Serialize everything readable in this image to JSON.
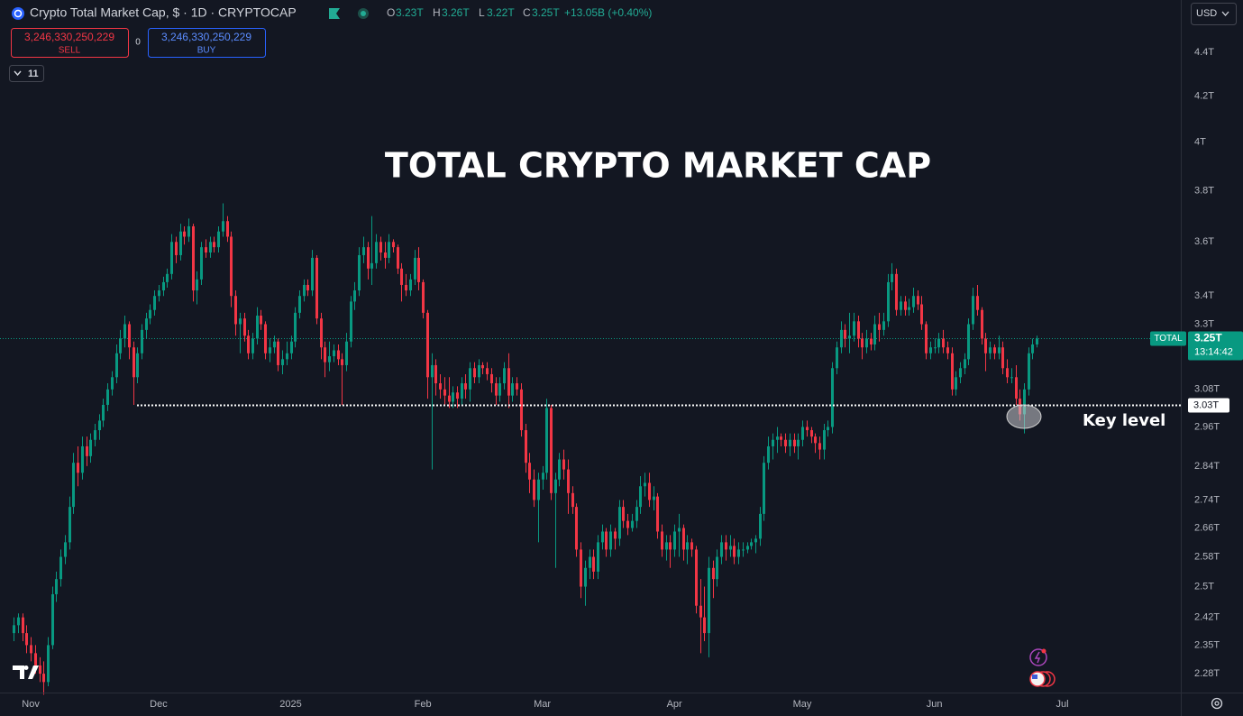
{
  "header": {
    "symbol_title": "Crypto Total Market Cap, $ · 1D · CRYPTOCAP",
    "ohlc": [
      {
        "label": "O",
        "value": "3.23T"
      },
      {
        "label": "H",
        "value": "3.26T"
      },
      {
        "label": "L",
        "value": "3.22T"
      },
      {
        "label": "C",
        "value": "3.25T"
      }
    ],
    "change": "+13.05B (+0.40%)"
  },
  "trade": {
    "sell_price": "3,246,330,250,229",
    "sell_label": "SELL",
    "spread": 0,
    "buy_price": "3,246,330,250,229",
    "buy_label": "BUY"
  },
  "indicators_count": 11,
  "currency": "USD",
  "chart_data": {
    "type": "candlestick",
    "title": "TOTAL CRYPTO MARKET CAP",
    "up_color": "#089981",
    "down_color": "#f23645",
    "log_scale": true,
    "xlim": [
      -3.2,
      273.8
    ],
    "ylim": [
      2.235,
      4.65
    ],
    "xticks": [
      {
        "value": 4,
        "label": "Nov"
      },
      {
        "value": 34,
        "label": "Dec"
      },
      {
        "value": 65,
        "label": "2025"
      },
      {
        "value": 96,
        "label": "Feb"
      },
      {
        "value": 124,
        "label": "Mar"
      },
      {
        "value": 155,
        "label": "Apr"
      },
      {
        "value": 185,
        "label": "May"
      },
      {
        "value": 216,
        "label": "Jun"
      },
      {
        "value": 246,
        "label": "Jul"
      }
    ],
    "yticks": [
      {
        "value": 4.4,
        "label": "4.4T"
      },
      {
        "value": 4.2,
        "label": "4.2T"
      },
      {
        "value": 4,
        "label": "4T"
      },
      {
        "value": 3.8,
        "label": "3.8T"
      },
      {
        "value": 3.6,
        "label": "3.6T"
      },
      {
        "value": 3.4,
        "label": "3.4T"
      },
      {
        "value": 3.3,
        "label": "3.3T"
      },
      {
        "value": 3.08,
        "label": "3.08T"
      },
      {
        "value": 2.96,
        "label": "2.96T"
      },
      {
        "value": 2.84,
        "label": "2.84T"
      },
      {
        "value": 2.74,
        "label": "2.74T"
      },
      {
        "value": 2.66,
        "label": "2.66T"
      },
      {
        "value": 2.58,
        "label": "2.58T"
      },
      {
        "value": 2.5,
        "label": "2.5T"
      },
      {
        "value": 2.42,
        "label": "2.42T"
      },
      {
        "value": 2.35,
        "label": "2.35T"
      },
      {
        "value": 2.28,
        "label": "2.28T"
      }
    ],
    "key_level": {
      "value": 3.03,
      "label": "3.03T"
    },
    "key_level_annotation": "Key level",
    "last_price": {
      "value": 3.25,
      "label": "3.25T"
    },
    "symbol_label": "TOTAL",
    "countdown": "13:14:42",
    "ohlc": [
      [
        2.38,
        2.42,
        2.36,
        2.4
      ],
      [
        2.4,
        2.43,
        2.38,
        2.42
      ],
      [
        2.42,
        2.43,
        2.36,
        2.38
      ],
      [
        2.38,
        2.4,
        2.33,
        2.35
      ],
      [
        2.35,
        2.37,
        2.31,
        2.33
      ],
      [
        2.33,
        2.35,
        2.28,
        2.3
      ],
      [
        2.3,
        2.32,
        2.26,
        2.28
      ],
      [
        2.28,
        2.31,
        2.23,
        2.26
      ],
      [
        2.26,
        2.37,
        2.25,
        2.35
      ],
      [
        2.35,
        2.5,
        2.34,
        2.48
      ],
      [
        2.48,
        2.54,
        2.46,
        2.52
      ],
      [
        2.52,
        2.6,
        2.5,
        2.58
      ],
      [
        2.58,
        2.64,
        2.56,
        2.62
      ],
      [
        2.62,
        2.75,
        2.6,
        2.72
      ],
      [
        2.72,
        2.88,
        2.7,
        2.85
      ],
      [
        2.85,
        2.9,
        2.78,
        2.82
      ],
      [
        2.82,
        2.93,
        2.8,
        2.9
      ],
      [
        2.9,
        2.93,
        2.84,
        2.87
      ],
      [
        2.87,
        2.94,
        2.85,
        2.92
      ],
      [
        2.92,
        2.97,
        2.9,
        2.95
      ],
      [
        2.95,
        3.0,
        2.92,
        2.98
      ],
      [
        2.98,
        3.05,
        2.96,
        3.03
      ],
      [
        3.03,
        3.1,
        3.01,
        3.08
      ],
      [
        3.08,
        3.14,
        3.06,
        3.12
      ],
      [
        3.12,
        3.23,
        3.1,
        3.2
      ],
      [
        3.2,
        3.28,
        3.18,
        3.25
      ],
      [
        3.25,
        3.33,
        3.22,
        3.3
      ],
      [
        3.3,
        3.31,
        3.18,
        3.22
      ],
      [
        3.22,
        3.24,
        3.03,
        3.12
      ],
      [
        3.12,
        3.22,
        3.1,
        3.2
      ],
      [
        3.2,
        3.3,
        3.18,
        3.28
      ],
      [
        3.28,
        3.34,
        3.25,
        3.32
      ],
      [
        3.32,
        3.37,
        3.3,
        3.35
      ],
      [
        3.35,
        3.42,
        3.33,
        3.4
      ],
      [
        3.4,
        3.44,
        3.38,
        3.42
      ],
      [
        3.42,
        3.47,
        3.4,
        3.45
      ],
      [
        3.45,
        3.5,
        3.43,
        3.48
      ],
      [
        3.48,
        3.63,
        3.46,
        3.6
      ],
      [
        3.6,
        3.62,
        3.52,
        3.55
      ],
      [
        3.55,
        3.67,
        3.53,
        3.64
      ],
      [
        3.64,
        3.66,
        3.59,
        3.62
      ],
      [
        3.62,
        3.69,
        3.6,
        3.66
      ],
      [
        3.66,
        3.67,
        3.38,
        3.42
      ],
      [
        3.42,
        3.49,
        3.37,
        3.46
      ],
      [
        3.46,
        3.6,
        3.44,
        3.58
      ],
      [
        3.58,
        3.61,
        3.54,
        3.56
      ],
      [
        3.56,
        3.62,
        3.54,
        3.6
      ],
      [
        3.6,
        3.62,
        3.56,
        3.58
      ],
      [
        3.58,
        3.66,
        3.56,
        3.64
      ],
      [
        3.64,
        3.75,
        3.62,
        3.68
      ],
      [
        3.68,
        3.7,
        3.6,
        3.62
      ],
      [
        3.62,
        3.64,
        3.36,
        3.4
      ],
      [
        3.4,
        3.42,
        3.26,
        3.3
      ],
      [
        3.3,
        3.34,
        3.2,
        3.32
      ],
      [
        3.32,
        3.34,
        3.24,
        3.26
      ],
      [
        3.26,
        3.28,
        3.18,
        3.2
      ],
      [
        3.2,
        3.27,
        3.18,
        3.25
      ],
      [
        3.25,
        3.36,
        3.23,
        3.33
      ],
      [
        3.33,
        3.35,
        3.28,
        3.3
      ],
      [
        3.3,
        3.31,
        3.18,
        3.2
      ],
      [
        3.2,
        3.25,
        3.17,
        3.22
      ],
      [
        3.22,
        3.26,
        3.2,
        3.24
      ],
      [
        3.24,
        3.25,
        3.14,
        3.16
      ],
      [
        3.16,
        3.21,
        3.13,
        3.18
      ],
      [
        3.18,
        3.24,
        3.16,
        3.2
      ],
      [
        3.2,
        3.26,
        3.18,
        3.24
      ],
      [
        3.24,
        3.36,
        3.22,
        3.34
      ],
      [
        3.34,
        3.42,
        3.32,
        3.4
      ],
      [
        3.4,
        3.46,
        3.38,
        3.44
      ],
      [
        3.44,
        3.46,
        3.4,
        3.42
      ],
      [
        3.42,
        3.57,
        3.4,
        3.54
      ],
      [
        3.54,
        3.55,
        3.3,
        3.32
      ],
      [
        3.32,
        3.34,
        3.18,
        3.22
      ],
      [
        3.22,
        3.24,
        3.12,
        3.17
      ],
      [
        3.17,
        3.24,
        3.14,
        3.19
      ],
      [
        3.19,
        3.23,
        3.17,
        3.21
      ],
      [
        3.21,
        3.23,
        3.16,
        3.18
      ],
      [
        3.18,
        3.2,
        3.03,
        3.16
      ],
      [
        3.16,
        3.27,
        3.14,
        3.24
      ],
      [
        3.24,
        3.4,
        3.22,
        3.38
      ],
      [
        3.38,
        3.45,
        3.35,
        3.42
      ],
      [
        3.42,
        3.58,
        3.4,
        3.55
      ],
      [
        3.55,
        3.62,
        3.52,
        3.58
      ],
      [
        3.58,
        3.6,
        3.46,
        3.5
      ],
      [
        3.5,
        3.7,
        3.44,
        3.52
      ],
      [
        3.52,
        3.63,
        3.5,
        3.6
      ],
      [
        3.6,
        3.62,
        3.53,
        3.56
      ],
      [
        3.56,
        3.6,
        3.5,
        3.54
      ],
      [
        3.54,
        3.63,
        3.52,
        3.6
      ],
      [
        3.6,
        3.61,
        3.56,
        3.58
      ],
      [
        3.58,
        3.59,
        3.48,
        3.5
      ],
      [
        3.5,
        3.52,
        3.38,
        3.44
      ],
      [
        3.44,
        3.48,
        3.4,
        3.42
      ],
      [
        3.42,
        3.48,
        3.4,
        3.46
      ],
      [
        3.46,
        3.57,
        3.44,
        3.54
      ],
      [
        3.54,
        3.58,
        3.42,
        3.45
      ],
      [
        3.45,
        3.46,
        3.32,
        3.34
      ],
      [
        3.34,
        3.35,
        3.05,
        3.12
      ],
      [
        3.12,
        3.2,
        2.83,
        3.16
      ],
      [
        3.16,
        3.18,
        3.06,
        3.1
      ],
      [
        3.1,
        3.13,
        3.05,
        3.08
      ],
      [
        3.08,
        3.12,
        3.03,
        3.06
      ],
      [
        3.06,
        3.12,
        3.02,
        3.04
      ],
      [
        3.04,
        3.09,
        3.02,
        3.07
      ],
      [
        3.07,
        3.09,
        3.02,
        3.05
      ],
      [
        3.05,
        3.12,
        3.03,
        3.1
      ],
      [
        3.1,
        3.13,
        3.05,
        3.08
      ],
      [
        3.08,
        3.17,
        3.04,
        3.15
      ],
      [
        3.15,
        3.17,
        3.1,
        3.12
      ],
      [
        3.12,
        3.18,
        3.1,
        3.16
      ],
      [
        3.16,
        3.17,
        3.13,
        3.15
      ],
      [
        3.15,
        3.17,
        3.11,
        3.13
      ],
      [
        3.13,
        3.15,
        3.07,
        3.1
      ],
      [
        3.1,
        3.12,
        3.03,
        3.06
      ],
      [
        3.06,
        3.12,
        3.04,
        3.1
      ],
      [
        3.1,
        3.17,
        3.08,
        3.15
      ],
      [
        3.15,
        3.2,
        3.02,
        3.06
      ],
      [
        3.06,
        3.12,
        3.04,
        3.1
      ],
      [
        3.1,
        3.12,
        3.06,
        3.08
      ],
      [
        3.08,
        3.1,
        2.93,
        2.95
      ],
      [
        2.95,
        2.97,
        2.82,
        2.85
      ],
      [
        2.85,
        2.88,
        2.76,
        2.8
      ],
      [
        2.8,
        2.83,
        2.72,
        2.74
      ],
      [
        2.74,
        2.82,
        2.62,
        2.8
      ],
      [
        2.8,
        2.84,
        2.77,
        2.82
      ],
      [
        2.82,
        3.05,
        2.8,
        3.02
      ],
      [
        3.02,
        3.03,
        2.74,
        2.76
      ],
      [
        2.76,
        2.82,
        2.55,
        2.8
      ],
      [
        2.8,
        2.88,
        2.78,
        2.86
      ],
      [
        2.86,
        2.89,
        2.8,
        2.83
      ],
      [
        2.83,
        2.86,
        2.7,
        2.76
      ],
      [
        2.76,
        2.78,
        2.7,
        2.72
      ],
      [
        2.72,
        2.73,
        2.58,
        2.6
      ],
      [
        2.6,
        2.62,
        2.47,
        2.5
      ],
      [
        2.5,
        2.57,
        2.45,
        2.55
      ],
      [
        2.55,
        2.6,
        2.52,
        2.58
      ],
      [
        2.58,
        2.6,
        2.52,
        2.54
      ],
      [
        2.54,
        2.64,
        2.52,
        2.62
      ],
      [
        2.62,
        2.67,
        2.6,
        2.65
      ],
      [
        2.65,
        2.66,
        2.58,
        2.6
      ],
      [
        2.6,
        2.67,
        2.58,
        2.65
      ],
      [
        2.65,
        2.66,
        2.6,
        2.63
      ],
      [
        2.63,
        2.74,
        2.61,
        2.72
      ],
      [
        2.72,
        2.74,
        2.66,
        2.68
      ],
      [
        2.68,
        2.7,
        2.64,
        2.66
      ],
      [
        2.66,
        2.7,
        2.65,
        2.68
      ],
      [
        2.68,
        2.74,
        2.66,
        2.72
      ],
      [
        2.72,
        2.81,
        2.7,
        2.78
      ],
      [
        2.78,
        2.82,
        2.75,
        2.79
      ],
      [
        2.79,
        2.82,
        2.72,
        2.74
      ],
      [
        2.74,
        2.78,
        2.71,
        2.75
      ],
      [
        2.75,
        2.76,
        2.63,
        2.65
      ],
      [
        2.65,
        2.67,
        2.58,
        2.6
      ],
      [
        2.6,
        2.64,
        2.57,
        2.62
      ],
      [
        2.62,
        2.64,
        2.55,
        2.6
      ],
      [
        2.6,
        2.67,
        2.58,
        2.65
      ],
      [
        2.65,
        2.7,
        2.58,
        2.66
      ],
      [
        2.66,
        2.67,
        2.57,
        2.6
      ],
      [
        2.6,
        2.64,
        2.56,
        2.62
      ],
      [
        2.62,
        2.63,
        2.58,
        2.6
      ],
      [
        2.6,
        2.61,
        2.43,
        2.45
      ],
      [
        2.45,
        2.52,
        2.33,
        2.42
      ],
      [
        2.42,
        2.5,
        2.36,
        2.38
      ],
      [
        2.38,
        2.58,
        2.32,
        2.55
      ],
      [
        2.55,
        2.57,
        2.47,
        2.52
      ],
      [
        2.52,
        2.6,
        2.5,
        2.58
      ],
      [
        2.58,
        2.64,
        2.56,
        2.62
      ],
      [
        2.62,
        2.64,
        2.57,
        2.6
      ],
      [
        2.6,
        2.64,
        2.58,
        2.61
      ],
      [
        2.61,
        2.63,
        2.56,
        2.58
      ],
      [
        2.58,
        2.62,
        2.56,
        2.6
      ],
      [
        2.6,
        2.62,
        2.58,
        2.6
      ],
      [
        2.6,
        2.62,
        2.59,
        2.61
      ],
      [
        2.61,
        2.63,
        2.6,
        2.62
      ],
      [
        2.62,
        2.64,
        2.59,
        2.63
      ],
      [
        2.63,
        2.72,
        2.61,
        2.7
      ],
      [
        2.7,
        2.87,
        2.68,
        2.85
      ],
      [
        2.85,
        2.93,
        2.83,
        2.9
      ],
      [
        2.9,
        2.94,
        2.86,
        2.92
      ],
      [
        2.92,
        2.96,
        2.88,
        2.93
      ],
      [
        2.93,
        2.94,
        2.9,
        2.92
      ],
      [
        2.92,
        2.94,
        2.88,
        2.9
      ],
      [
        2.9,
        2.94,
        2.87,
        2.92
      ],
      [
        2.92,
        2.94,
        2.88,
        2.9
      ],
      [
        2.9,
        2.94,
        2.86,
        2.92
      ],
      [
        2.92,
        2.98,
        2.9,
        2.96
      ],
      [
        2.96,
        2.98,
        2.93,
        2.95
      ],
      [
        2.95,
        2.96,
        2.91,
        2.93
      ],
      [
        2.93,
        2.94,
        2.88,
        2.91
      ],
      [
        2.91,
        2.93,
        2.86,
        2.89
      ],
      [
        2.89,
        2.97,
        2.86,
        2.95
      ],
      [
        2.95,
        2.98,
        2.93,
        2.96
      ],
      [
        2.96,
        3.17,
        2.94,
        3.15
      ],
      [
        3.15,
        3.24,
        3.13,
        3.22
      ],
      [
        3.22,
        3.31,
        3.2,
        3.28
      ],
      [
        3.28,
        3.3,
        3.22,
        3.25
      ],
      [
        3.25,
        3.34,
        3.2,
        3.26
      ],
      [
        3.26,
        3.34,
        3.24,
        3.31
      ],
      [
        3.31,
        3.33,
        3.22,
        3.25
      ],
      [
        3.25,
        3.27,
        3.18,
        3.22
      ],
      [
        3.22,
        3.28,
        3.2,
        3.25
      ],
      [
        3.25,
        3.27,
        3.21,
        3.23
      ],
      [
        3.23,
        3.33,
        3.21,
        3.3
      ],
      [
        3.3,
        3.34,
        3.24,
        3.28
      ],
      [
        3.28,
        3.34,
        3.26,
        3.31
      ],
      [
        3.31,
        3.48,
        3.29,
        3.45
      ],
      [
        3.45,
        3.52,
        3.42,
        3.48
      ],
      [
        3.48,
        3.5,
        3.33,
        3.35
      ],
      [
        3.35,
        3.4,
        3.33,
        3.38
      ],
      [
        3.38,
        3.4,
        3.33,
        3.35
      ],
      [
        3.35,
        3.39,
        3.33,
        3.36
      ],
      [
        3.36,
        3.43,
        3.34,
        3.4
      ],
      [
        3.4,
        3.42,
        3.35,
        3.37
      ],
      [
        3.37,
        3.4,
        3.28,
        3.3
      ],
      [
        3.3,
        3.31,
        3.18,
        3.2
      ],
      [
        3.2,
        3.24,
        3.18,
        3.22
      ],
      [
        3.22,
        3.25,
        3.2,
        3.22
      ],
      [
        3.22,
        3.27,
        3.2,
        3.25
      ],
      [
        3.25,
        3.28,
        3.2,
        3.22
      ],
      [
        3.22,
        3.24,
        3.18,
        3.2
      ],
      [
        3.2,
        3.22,
        3.06,
        3.08
      ],
      [
        3.08,
        3.14,
        3.06,
        3.12
      ],
      [
        3.12,
        3.17,
        3.1,
        3.15
      ],
      [
        3.15,
        3.2,
        3.13,
        3.18
      ],
      [
        3.18,
        3.32,
        3.16,
        3.3
      ],
      [
        3.3,
        3.43,
        3.28,
        3.4
      ],
      [
        3.4,
        3.44,
        3.33,
        3.35
      ],
      [
        3.35,
        3.36,
        3.23,
        3.25
      ],
      [
        3.25,
        3.27,
        3.14,
        3.2
      ],
      [
        3.2,
        3.24,
        3.18,
        3.22
      ],
      [
        3.22,
        3.23,
        3.18,
        3.2
      ],
      [
        3.2,
        3.26,
        3.18,
        3.22
      ],
      [
        3.22,
        3.24,
        3.13,
        3.15
      ],
      [
        3.15,
        3.18,
        3.1,
        3.12
      ],
      [
        3.12,
        3.15,
        3.1,
        3.12
      ],
      [
        3.12,
        3.16,
        3.03,
        3.05
      ],
      [
        3.05,
        3.08,
        2.98,
        3.0
      ],
      [
        3.0,
        3.1,
        2.94,
        3.08
      ],
      [
        3.08,
        3.22,
        3.06,
        3.2
      ],
      [
        3.2,
        3.25,
        3.18,
        3.23
      ],
      [
        3.23,
        3.26,
        3.22,
        3.25
      ]
    ]
  }
}
